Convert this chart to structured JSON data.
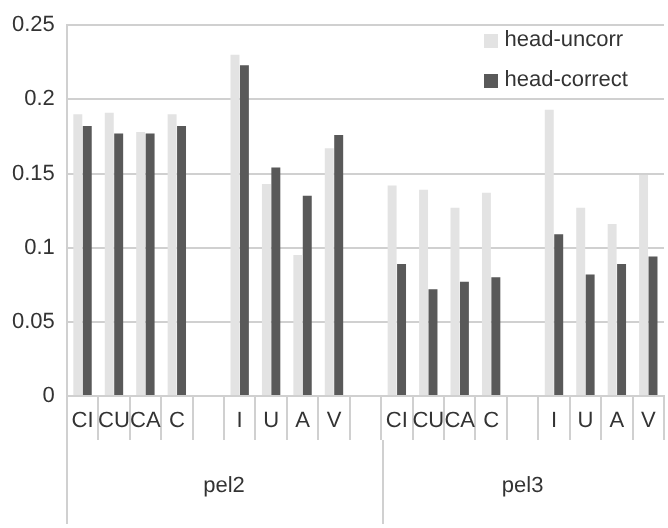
{
  "chart_data": {
    "type": "bar",
    "categories": [
      "CI",
      "CU",
      "CA",
      "C",
      null,
      "I",
      "U",
      "A",
      "V",
      null,
      "CI",
      "CU",
      "CA",
      "C",
      null,
      "I",
      "U",
      "A",
      "V"
    ],
    "series": [
      {
        "name": "head-uncorr",
        "color": "#e3e3e3",
        "values": [
          0.19,
          0.191,
          0.178,
          0.19,
          null,
          0.23,
          0.143,
          0.095,
          0.167,
          null,
          0.142,
          0.139,
          0.127,
          0.137,
          null,
          0.193,
          0.127,
          0.116,
          0.149
        ]
      },
      {
        "name": "head-correct",
        "color": "#595959",
        "values": [
          0.182,
          0.177,
          0.177,
          0.182,
          null,
          0.223,
          0.154,
          0.135,
          0.176,
          null,
          0.089,
          0.072,
          0.077,
          0.08,
          null,
          0.109,
          0.082,
          0.089,
          0.094
        ]
      }
    ],
    "ylim": [
      0,
      0.25
    ],
    "yticks": [
      0,
      0.05,
      0.1,
      0.15,
      0.2,
      0.25
    ],
    "grid": "y",
    "legend": "top right",
    "annotations": [
      "pel2",
      "pel3"
    ]
  }
}
